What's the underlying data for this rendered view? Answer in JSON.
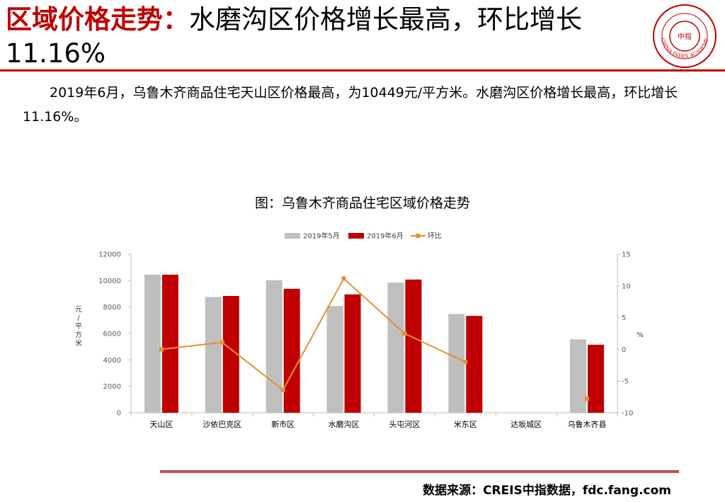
{
  "header": {
    "title_highlight": "区域价格走势：",
    "title_rest": "水磨沟区价格增长最高，环比增长11.16%",
    "logo_text": "CHINA INDEX ACADEMY",
    "logo_center": "中指"
  },
  "summary": "2019年6月，乌鲁木齐商品住宅天山区价格最高，为10449元/平方米。水磨沟区价格增长最高，环比增长11.16%。",
  "chart_title": "图：乌鲁木齐商品住宅区域价格走势",
  "footer": {
    "source": "数据来源：CREIS中指数据，fdc.fang.com"
  },
  "colors": {
    "accent": "#c00000",
    "may": "#bfbfbf",
    "june": "#c00000",
    "mom": "#e3902f",
    "rule": "#c0504d"
  },
  "chart_data": {
    "type": "bar",
    "categories": [
      "天山区",
      "沙依巴克区",
      "新市区",
      "水磨沟区",
      "头屯河区",
      "米东区",
      "达坂城区",
      "乌鲁木齐县"
    ],
    "series": [
      {
        "name": "2019年5月",
        "type": "bar",
        "axis": "left",
        "values": [
          10450,
          8760,
          10030,
          8080,
          9850,
          7480,
          null,
          5560
        ]
      },
      {
        "name": "2019年6月",
        "type": "bar",
        "axis": "left",
        "values": [
          10449,
          8840,
          9380,
          8960,
          10080,
          7330,
          null,
          5150
        ]
      },
      {
        "name": "环比",
        "type": "line",
        "axis": "right",
        "values": [
          0.0,
          1.1,
          -6.4,
          11.16,
          2.5,
          -2.0,
          null,
          -7.8
        ]
      }
    ],
    "ylabel": "元/平方米",
    "ylim": [
      0,
      12000
    ],
    "yticks": [
      0,
      2000,
      4000,
      6000,
      8000,
      10000,
      12000
    ],
    "y2label": "%",
    "y2lim": [
      -10,
      15
    ],
    "y2ticks": [
      -10,
      -5,
      0,
      5,
      10,
      15
    ],
    "legend_position": "top",
    "grid": false
  }
}
